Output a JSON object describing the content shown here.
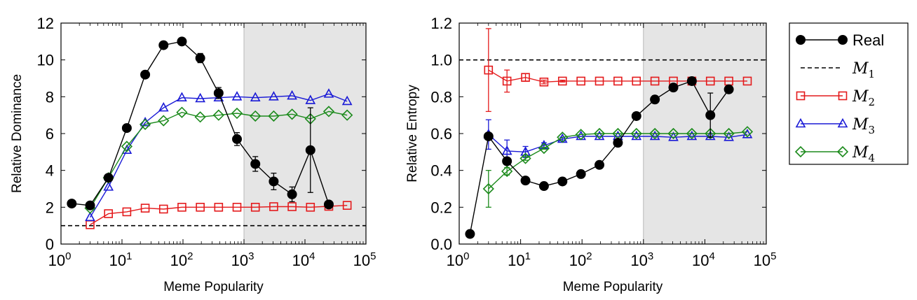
{
  "chart_data": [
    {
      "type": "line",
      "xlabel": "Meme Popularity",
      "ylabel": "Relative Dominance",
      "xscale": "log",
      "xlim": [
        1,
        100000
      ],
      "ylim": [
        0,
        12
      ],
      "xticks": [
        1,
        10,
        100,
        1000,
        10000,
        100000
      ],
      "yticks": [
        0,
        2,
        4,
        6,
        8,
        10,
        12
      ],
      "shaded_region": [
        1000,
        100000
      ],
      "series": [
        {
          "name": "Real",
          "x": [
            1.5,
            3,
            6,
            12,
            24,
            48,
            96,
            192,
            384,
            768,
            1536,
            3072,
            6144,
            12288,
            24576,
            49152
          ],
          "y": [
            2.2,
            2.1,
            3.6,
            6.3,
            9.2,
            10.8,
            11.0,
            10.1,
            8.2,
            5.7,
            4.35,
            3.4,
            2.7,
            5.1,
            2.15,
            null
          ],
          "err": [
            0,
            0.1,
            0.1,
            0.1,
            0.1,
            0.1,
            0.1,
            0.25,
            0.3,
            0.35,
            0.4,
            0.45,
            0.4,
            2.3,
            0.15,
            0
          ]
        },
        {
          "name": "M_2",
          "x": [
            3,
            6,
            12,
            24,
            48,
            96,
            192,
            384,
            768,
            1536,
            3072,
            6144,
            12288,
            24576,
            49152
          ],
          "y": [
            1.05,
            1.65,
            1.75,
            1.95,
            1.9,
            2.0,
            2.0,
            2.0,
            2.0,
            2.0,
            2.03,
            2.03,
            2.0,
            2.05,
            2.1
          ]
        },
        {
          "name": "M_3",
          "x": [
            3,
            6,
            12,
            24,
            48,
            96,
            192,
            384,
            768,
            1536,
            3072,
            6144,
            12288,
            24576,
            49152
          ],
          "y": [
            1.45,
            3.1,
            5.1,
            6.6,
            7.4,
            7.95,
            7.9,
            7.95,
            8.0,
            7.95,
            8.0,
            8.05,
            7.8,
            8.15,
            7.75
          ]
        },
        {
          "name": "M_4",
          "x": [
            3,
            6,
            12,
            24,
            48,
            96,
            192,
            384,
            768,
            1536,
            3072,
            6144,
            12288,
            24576,
            49152
          ],
          "y": [
            1.95,
            3.6,
            5.3,
            6.5,
            6.7,
            7.15,
            6.9,
            7.0,
            7.1,
            6.95,
            6.95,
            7.05,
            6.8,
            7.2,
            7.0
          ]
        },
        {
          "name": "M_1",
          "hline": 1.0
        }
      ]
    },
    {
      "type": "line",
      "xlabel": "Meme Popularity",
      "ylabel": "Relative Entropy",
      "xscale": "log",
      "xlim": [
        1,
        100000
      ],
      "ylim": [
        0.0,
        1.2
      ],
      "xticks": [
        1,
        10,
        100,
        1000,
        10000,
        100000
      ],
      "yticks": [
        0.0,
        0.2,
        0.4,
        0.6,
        0.8,
        1.0,
        1.2
      ],
      "shaded_region": [
        1000,
        100000
      ],
      "series": [
        {
          "name": "Real",
          "x": [
            1.5,
            3,
            6,
            12,
            24,
            48,
            96,
            192,
            384,
            768,
            1536,
            3072,
            6144,
            12288,
            24576,
            49152
          ],
          "y": [
            0.055,
            0.585,
            0.45,
            0.345,
            0.315,
            0.34,
            0.38,
            0.43,
            0.55,
            0.695,
            0.785,
            0.85,
            0.885,
            0.7,
            0.84,
            null
          ],
          "err": [
            0,
            0.01,
            0.01,
            0.008,
            0.008,
            0.008,
            0.008,
            0.01,
            0.012,
            0.02,
            0.02,
            0.02,
            0.02,
            0.12,
            0.015,
            0
          ]
        },
        {
          "name": "M_2",
          "x": [
            3,
            6,
            12,
            24,
            48,
            96,
            192,
            384,
            768,
            1536,
            3072,
            6144,
            12288,
            24576,
            49152
          ],
          "y": [
            0.945,
            0.885,
            0.905,
            0.88,
            0.885,
            0.885,
            0.885,
            0.885,
            0.885,
            0.885,
            0.885,
            0.885,
            0.885,
            0.885,
            0.885
          ],
          "err": [
            0.225,
            0.06,
            0.02,
            0.01,
            0.005,
            0,
            0,
            0,
            0,
            0,
            0,
            0,
            0,
            0,
            0
          ]
        },
        {
          "name": "M_3",
          "x": [
            3,
            6,
            12,
            24,
            48,
            96,
            192,
            384,
            768,
            1536,
            3072,
            6144,
            12288,
            24576,
            49152
          ],
          "y": [
            0.595,
            0.505,
            0.5,
            0.535,
            0.57,
            0.585,
            0.585,
            0.585,
            0.585,
            0.585,
            0.58,
            0.585,
            0.585,
            0.58,
            0.595
          ],
          "err": [
            0.08,
            0.06,
            0.03,
            0.015,
            0.01,
            0,
            0,
            0,
            0,
            0,
            0,
            0,
            0,
            0,
            0
          ]
        },
        {
          "name": "M_4",
          "x": [
            3,
            6,
            12,
            24,
            48,
            96,
            192,
            384,
            768,
            1536,
            3072,
            6144,
            12288,
            24576,
            49152
          ],
          "y": [
            0.3,
            0.395,
            0.465,
            0.52,
            0.58,
            0.595,
            0.6,
            0.6,
            0.6,
            0.6,
            0.6,
            0.6,
            0.6,
            0.6,
            0.61
          ],
          "err": [
            0.1,
            0.02,
            0.01,
            0.005,
            0,
            0,
            0,
            0,
            0,
            0,
            0,
            0,
            0,
            0,
            0
          ]
        },
        {
          "name": "M_1",
          "hline": 1.0
        }
      ]
    }
  ],
  "legend": {
    "placement": "right",
    "entries": [
      {
        "key": "real",
        "label": "Real",
        "color": "#000000",
        "marker": "circle",
        "style": "solid"
      },
      {
        "key": "m1",
        "label": "M",
        "sub": "1",
        "color": "#000000",
        "marker": "none",
        "style": "dashed"
      },
      {
        "key": "m2",
        "label": "M",
        "sub": "2",
        "color": "#e41a1c",
        "marker": "square",
        "style": "solid"
      },
      {
        "key": "m3",
        "label": "M",
        "sub": "3",
        "color": "#1a1ad6",
        "marker": "triangle",
        "style": "solid"
      },
      {
        "key": "m4",
        "label": "M",
        "sub": "4",
        "color": "#1b8a1b",
        "marker": "diamond",
        "style": "solid"
      }
    ]
  },
  "colors": {
    "real": "#000000",
    "m2": "#e41a1c",
    "m3": "#1a1ad6",
    "m4": "#1b8a1b",
    "shade": "#e5e5e5"
  }
}
